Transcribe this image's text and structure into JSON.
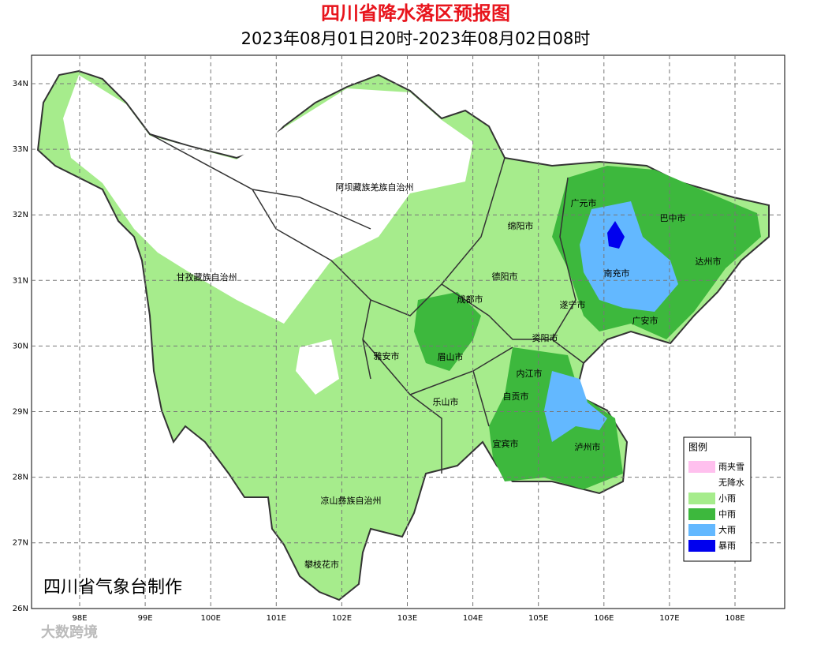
{
  "header": {
    "title": "四川省降水落区预报图",
    "subtitle": "2023年08月01日20时-2023年08月02日08时"
  },
  "map": {
    "lat_ticks": [
      "34N",
      "33N",
      "32N",
      "31N",
      "30N",
      "29N",
      "28N",
      "27N",
      "26N"
    ],
    "lon_ticks": [
      "98E",
      "99E",
      "100E",
      "101E",
      "102E",
      "103E",
      "104E",
      "105E",
      "106E",
      "107E",
      "108E"
    ],
    "regions": [
      "阿坝藏族羌族自治州",
      "广元市",
      "巴中市",
      "绵阳市",
      "达州市",
      "甘孜藏族自治州",
      "德阳市",
      "南充市",
      "成都市",
      "遂宁市",
      "广安市",
      "资阳市",
      "雅安市",
      "眉山市",
      "内江市",
      "自贡市",
      "乐山市",
      "宜宾市",
      "泸州市",
      "凉山彝族自治州",
      "攀枝花市"
    ]
  },
  "legend": {
    "title": "图例",
    "items": [
      {
        "label": "雨夹雪",
        "color": "#ffc0ee"
      },
      {
        "label": "无降水",
        "color": "#ffffff"
      },
      {
        "label": "小雨",
        "color": "#a6ec8c"
      },
      {
        "label": "中雨",
        "color": "#3db83d"
      },
      {
        "label": "大雨",
        "color": "#63b8ff"
      },
      {
        "label": "暴雨",
        "color": "#0000ee"
      }
    ]
  },
  "credit": "四川省气象台制作",
  "watermark": "大数跨境"
}
